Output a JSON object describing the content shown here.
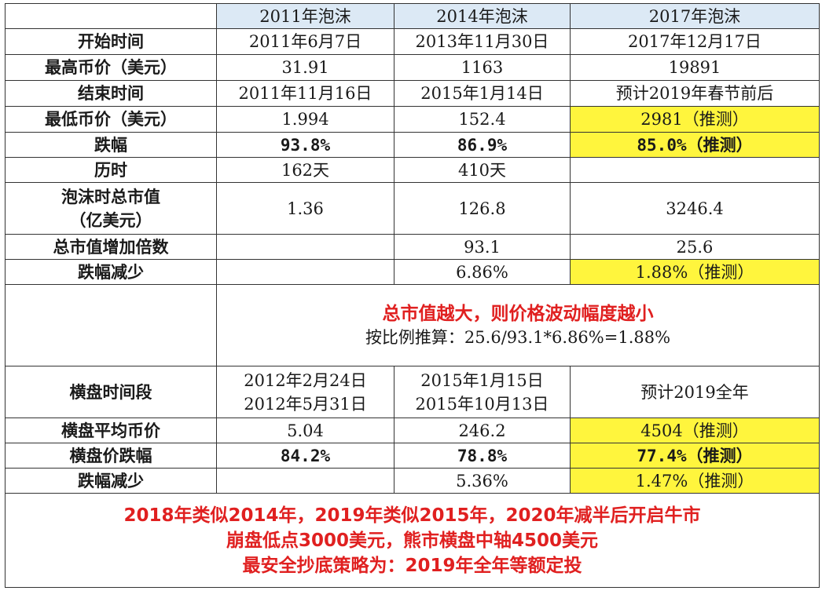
{
  "header": [
    "2011年泡沫",
    "2014年泡沫",
    "2017年泡沫"
  ],
  "rows": [
    {
      "label": "开始时间",
      "c1": "2011年6月7日",
      "c2": "2013年11月30日",
      "c3": "2017年12月17日"
    },
    {
      "label": "最高币价（美元）",
      "c1": "31.91",
      "c2": "1163",
      "c3": "19891"
    },
    {
      "label": "结束时间",
      "c1": "2011年11月16日",
      "c2": "2015年1月14日",
      "c3": "预计2019年春节前后"
    },
    {
      "label": "最低币价（美元）",
      "c1": "1.994",
      "c2": "152.4",
      "c3": "2981（推测）"
    },
    {
      "label": "跌幅",
      "c1": "93.8%",
      "c2": "86.9%",
      "c3": "85.0%（推测）"
    },
    {
      "label": "历时",
      "c1": "162天",
      "c2": "410天",
      "c3": ""
    },
    {
      "label_line1": "泡沫时总市值",
      "label_line2": "（亿美元）",
      "c1": "1.36",
      "c2": "126.8",
      "c3": "3246.4"
    },
    {
      "label": "总市值增加倍数",
      "c1": "",
      "c2": "93.1",
      "c3": "25.6"
    },
    {
      "label": "跌幅减少",
      "c1": "",
      "c2": "6.86%",
      "c3": "1.88%（推测）"
    }
  ],
  "note": {
    "title": "总市值越大，则价格波动幅度越小",
    "formula": "按比例推算：25.6/93.1*6.86%=1.88%"
  },
  "consolidation": {
    "period_label": "横盘时间段",
    "c1_line1": "2012年2月24日",
    "c1_line2": "2012年5月31日",
    "c2_line1": "2015年1月15日",
    "c2_line2": "2015年10月13日",
    "c3": "预计2019全年",
    "rows": [
      {
        "label": "横盘平均币价",
        "c1": "5.04",
        "c2": "246.2",
        "c3": "4504（推测）"
      },
      {
        "label": "横盘价跌幅",
        "c1": "84.2%",
        "c2": "78.8%",
        "c3": "77.4%（推测）"
      },
      {
        "label": "跌幅减少",
        "c1": "",
        "c2": "5.36%",
        "c3": "1.47%（推测）"
      }
    ]
  },
  "footer": [
    "2018年类似2014年，2019年类似2015年，2020年减半后开启牛市",
    "崩盘低点3000美元，熊市横盘中轴4500美元",
    "最安全抄底策略为：2019年全年等额定投"
  ],
  "colors": {
    "header_bg": "#dce9f5",
    "highlight": "#fff53d",
    "red_text": "#e02020"
  }
}
